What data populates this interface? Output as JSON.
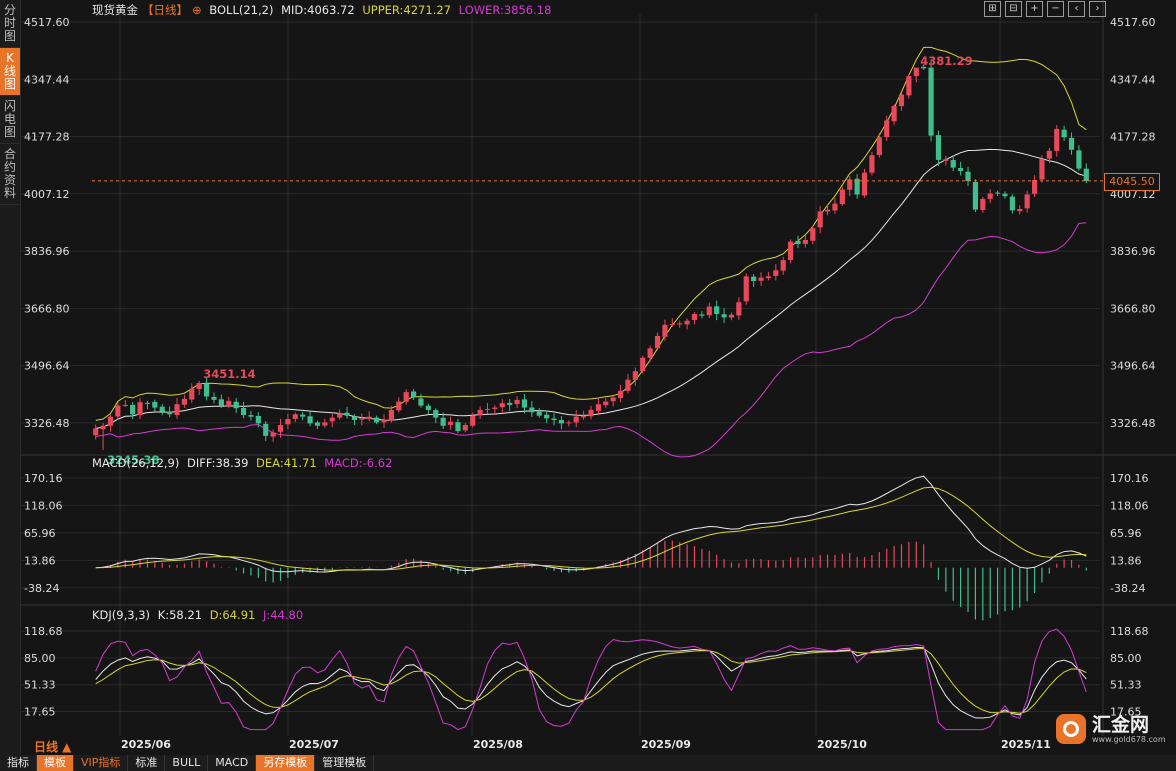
{
  "sidebar": [
    {
      "label": "分时图",
      "active": false
    },
    {
      "label": "K线图",
      "active": true
    },
    {
      "label": "闪电图",
      "active": false
    },
    {
      "label": "合约资料",
      "active": false
    }
  ],
  "header": {
    "symbol": "现货黄金",
    "period": "【日线】",
    "plus_glyph": "⊕",
    "boll_label": "BOLL(21,2)",
    "mid": "MID:4063.72",
    "upper": "UPPER:4271.27",
    "lower": "LOWER:3856.18"
  },
  "toolbar_icons": [
    "expand-icon",
    "shrink-icon",
    "zoom-in-icon",
    "zoom-out-icon",
    "prev-icon",
    "next-icon"
  ],
  "toolbar_glyphs": [
    "⊞",
    "⊟",
    "+",
    "−",
    "‹",
    "›"
  ],
  "macd_legend": {
    "label": "MACD(26,12,9)",
    "diff": "DIFF:38.39",
    "dea": "DEA:41.71",
    "macd": "MACD:-6.62"
  },
  "kdj_legend": {
    "label": "KDJ(9,3,3)",
    "k": "K:58.21",
    "d": "D:64.91",
    "j": "J:44.80"
  },
  "current_price": "4045.50",
  "period_label": "日线 ▲",
  "bottom_bar": [
    {
      "label": "指标",
      "style": "normal"
    },
    {
      "label": "模板",
      "style": "orange"
    },
    {
      "label": "VIP指标",
      "style": "vip"
    },
    {
      "label": "标准",
      "style": "normal"
    },
    {
      "label": "BULL",
      "style": "normal"
    },
    {
      "label": "MACD",
      "style": "normal"
    },
    {
      "label": "另存模板",
      "style": "orange"
    },
    {
      "label": "管理模板",
      "style": "normal"
    }
  ],
  "logo": {
    "name": "汇金网",
    "url": "www.gold678.com"
  },
  "colors": {
    "up": "#e8485a",
    "down": "#3fbf8f",
    "mid": "#e8e8e8",
    "upper": "#d6d630",
    "lower": "#d43ad4",
    "accent": "#e8742a",
    "grid": "#2a2a2a"
  },
  "chart_data": [
    {
      "type": "candlestick",
      "title": "现货黄金 日线",
      "x_labels": [
        "2025/06",
        "2025/07",
        "2025/08",
        "2025/09",
        "2025/10",
        "2025/11"
      ],
      "y_ticks": [
        "4517.60",
        "4347.44",
        "4177.28",
        "4007.12",
        "3836.96",
        "3666.80",
        "3496.64",
        "3326.48"
      ],
      "ylim": [
        3240,
        4517.6
      ],
      "annotations": [
        {
          "text": "4381.29",
          "value": 4381.29,
          "kind": "high"
        },
        {
          "text": "3451.14",
          "value": 3451.14,
          "kind": "high"
        },
        {
          "text": "3245.38",
          "value": 3245.38,
          "kind": "low"
        }
      ],
      "current_price": 4045.5,
      "closes": [
        3310,
        3318,
        3345,
        3378,
        3380,
        3352,
        3388,
        3386,
        3372,
        3360,
        3352,
        3382,
        3398,
        3428,
        3445,
        3405,
        3395,
        3378,
        3392,
        3370,
        3350,
        3345,
        3325,
        3288,
        3298,
        3320,
        3338,
        3352,
        3345,
        3325,
        3318,
        3328,
        3342,
        3355,
        3348,
        3335,
        3340,
        3345,
        3328,
        3335,
        3365,
        3390,
        3418,
        3402,
        3378,
        3365,
        3342,
        3318,
        3330,
        3302,
        3320,
        3348,
        3365,
        3368,
        3372,
        3385,
        3380,
        3395,
        3372,
        3358,
        3348,
        3340,
        3335,
        3325,
        3328,
        3345,
        3348,
        3365,
        3382,
        3390,
        3402,
        3422,
        3455,
        3480,
        3520,
        3548,
        3585,
        3618,
        3620,
        3622,
        3630,
        3650,
        3645,
        3672,
        3650,
        3640,
        3648,
        3685,
        3762,
        3748,
        3758,
        3762,
        3780,
        3810,
        3865,
        3858,
        3870,
        3905,
        3955,
        3960,
        3978,
        4020,
        4050,
        4005,
        4070,
        4122,
        4175,
        4225,
        4268,
        4302,
        4357,
        4382,
        4380,
        4180,
        4108,
        4110,
        4085,
        4075,
        4045,
        3960,
        3992,
        4008,
        4010,
        4000,
        3958,
        3962,
        4005,
        4048,
        4110,
        4135,
        4200,
        4175,
        4138,
        4082,
        4045
      ]
    },
    {
      "type": "bar",
      "title": "MACD(26,12,9)",
      "y_ticks": [
        "170.16",
        "118.06",
        "65.96",
        "13.86",
        "-38.24"
      ],
      "ylim": [
        -65,
        185
      ],
      "series": [
        {
          "name": "DIFF",
          "last": 38.39
        },
        {
          "name": "DEA",
          "last": 41.71
        },
        {
          "name": "MACD",
          "last": -6.62
        }
      ]
    },
    {
      "type": "line",
      "title": "KDJ(9,3,3)",
      "y_ticks": [
        "118.68",
        "85.00",
        "51.33",
        "17.65"
      ],
      "ylim": [
        -8,
        130
      ],
      "series": [
        {
          "name": "K",
          "last": 58.21
        },
        {
          "name": "D",
          "last": 64.91
        },
        {
          "name": "J",
          "last": 44.8
        }
      ]
    }
  ]
}
